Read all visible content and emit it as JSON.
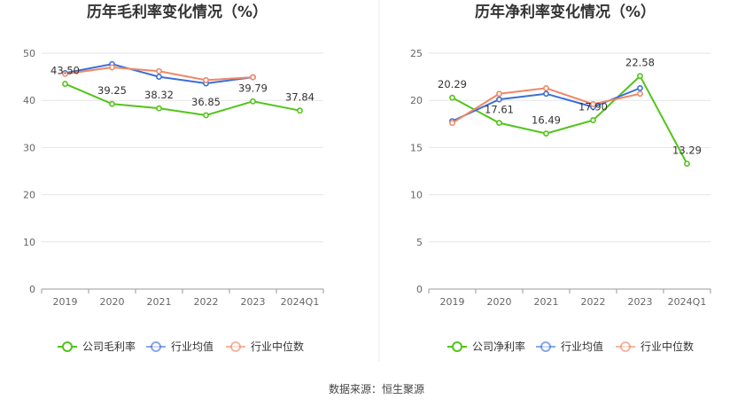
{
  "chart_data": [
    {
      "type": "line",
      "title": "历年毛利率变化情况（%）",
      "categories": [
        "2019",
        "2020",
        "2021",
        "2022",
        "2023",
        "2024Q1"
      ],
      "ylim": [
        0,
        50
      ],
      "yticks": [
        "0",
        "10",
        "20",
        "30",
        "40",
        "50"
      ],
      "series": [
        {
          "name": "公司毛利率",
          "color": "#52c41a",
          "values": [
            43.5,
            39.25,
            38.32,
            36.85,
            39.79,
            37.84
          ],
          "labels": [
            "43.50",
            "39.25",
            "38.32",
            "36.85",
            "39.79",
            "37.84"
          ]
        },
        {
          "name": "行业均值",
          "color": "#3b6fd8",
          "values": [
            45.8,
            47.7,
            45.0,
            43.6,
            44.9,
            null
          ]
        },
        {
          "name": "行业中位数",
          "color": "#ee8866",
          "values": [
            45.6,
            47.0,
            46.2,
            44.3,
            44.9,
            null
          ]
        }
      ]
    },
    {
      "type": "line",
      "title": "历年净利率变化情况（%）",
      "categories": [
        "2019",
        "2020",
        "2021",
        "2022",
        "2023",
        "2024Q1"
      ],
      "ylim": [
        0,
        25
      ],
      "yticks": [
        "0",
        "5",
        "10",
        "15",
        "20",
        "25"
      ],
      "series": [
        {
          "name": "公司净利率",
          "color": "#52c41a",
          "values": [
            20.29,
            17.61,
            16.49,
            17.9,
            22.58,
            13.29
          ],
          "labels": [
            "20.29",
            "17.61",
            "16.49",
            "17.90",
            "22.58",
            "13.29"
          ]
        },
        {
          "name": "行业均值",
          "color": "#3b6fd8",
          "values": [
            17.8,
            20.1,
            20.7,
            19.3,
            21.3,
            null
          ]
        },
        {
          "name": "行业中位数",
          "color": "#ee8866",
          "values": [
            17.6,
            20.7,
            21.3,
            19.6,
            20.7,
            null
          ]
        }
      ]
    }
  ],
  "source_text": "数据来源：恒生聚源"
}
